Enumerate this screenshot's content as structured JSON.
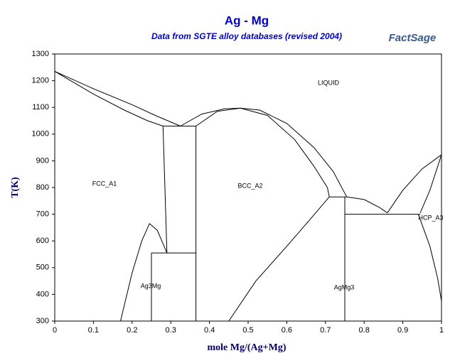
{
  "chart_data": {
    "type": "line",
    "title": "Ag - Mg",
    "subtitle": "Data from SGTE alloy databases (revised 2004)",
    "logo": "FactSage",
    "x_label": "mole Mg/(Ag+Mg)",
    "y_label": "T(K)",
    "xlim": [
      0,
      1
    ],
    "ylim": [
      300,
      1300
    ],
    "xticks": [
      0,
      0.1,
      0.2,
      0.3,
      0.4,
      0.5,
      0.6,
      0.7,
      0.8,
      0.9,
      1
    ],
    "yticks": [
      300,
      400,
      500,
      600,
      700,
      800,
      900,
      1000,
      1100,
      1200,
      1300
    ],
    "annotations": [
      "LIQUID",
      "FCC_A1",
      "BCC_A2",
      "Ag3Mg",
      "AgMg3",
      "HCP_A3"
    ],
    "series": [
      {
        "color": "#000000",
        "x": [
          0,
          0.1,
          0.2,
          0.26,
          0.325
        ],
        "values": [
          1235,
          1170,
          1110,
          1070,
          1030
        ]
      },
      {
        "color": "#000000",
        "x": [
          0,
          0.1,
          0.18,
          0.24,
          0.28
        ],
        "values": [
          1235,
          1150,
          1090,
          1050,
          1030
        ]
      },
      {
        "color": "#000000",
        "x": [
          0.28,
          0.365
        ],
        "values": [
          1030,
          1030
        ]
      },
      {
        "color": "#000000",
        "x": [
          0.28,
          0.29
        ],
        "values": [
          1030,
          555
        ]
      },
      {
        "color": "#000000",
        "x": [
          0.365,
          0.365
        ],
        "values": [
          1030,
          300
        ]
      },
      {
        "color": "#000000",
        "x": [
          0.25,
          0.365
        ],
        "values": [
          555,
          555
        ]
      },
      {
        "color": "#000000",
        "x": [
          0.25,
          0.25
        ],
        "values": [
          555,
          300
        ]
      },
      {
        "color": "#000000",
        "x": [
          0.17,
          0.2,
          0.225,
          0.245,
          0.265,
          0.29
        ],
        "values": [
          300,
          480,
          600,
          665,
          640,
          555
        ]
      },
      {
        "color": "#000000",
        "x": [
          0.325,
          0.38,
          0.44,
          0.48,
          0.53,
          0.6,
          0.67,
          0.72,
          0.755
        ],
        "values": [
          1030,
          1075,
          1095,
          1097,
          1090,
          1040,
          950,
          860,
          765
        ]
      },
      {
        "color": "#000000",
        "x": [
          0.365,
          0.42,
          0.48,
          0.55,
          0.62,
          0.67,
          0.705,
          0.71
        ],
        "values": [
          1030,
          1085,
          1097,
          1070,
          980,
          880,
          800,
          765
        ]
      },
      {
        "color": "#000000",
        "x": [
          0.71,
          0.755
        ],
        "values": [
          765,
          765
        ]
      },
      {
        "color": "#000000",
        "x": [
          0.45,
          0.52,
          0.6,
          0.66,
          0.71
        ],
        "values": [
          300,
          450,
          580,
          680,
          765
        ]
      },
      {
        "color": "#000000",
        "x": [
          0.75,
          0.75
        ],
        "values": [
          765,
          300
        ]
      },
      {
        "color": "#000000",
        "x": [
          0.755,
          0.8,
          0.84,
          0.86
        ],
        "values": [
          765,
          755,
          725,
          705
        ]
      },
      {
        "color": "#000000",
        "x": [
          0.75,
          0.945
        ],
        "values": [
          700,
          700
        ]
      },
      {
        "color": "#000000",
        "x": [
          0.86,
          0.9,
          0.95,
          1
        ],
        "values": [
          705,
          790,
          870,
          923
        ]
      },
      {
        "color": "#000000",
        "x": [
          0.945,
          0.97,
          1
        ],
        "values": [
          705,
          790,
          923
        ]
      },
      {
        "color": "#000000",
        "x": [
          0.94,
          0.97,
          0.99,
          1
        ],
        "values": [
          700,
          580,
          460,
          375
        ]
      }
    ]
  }
}
